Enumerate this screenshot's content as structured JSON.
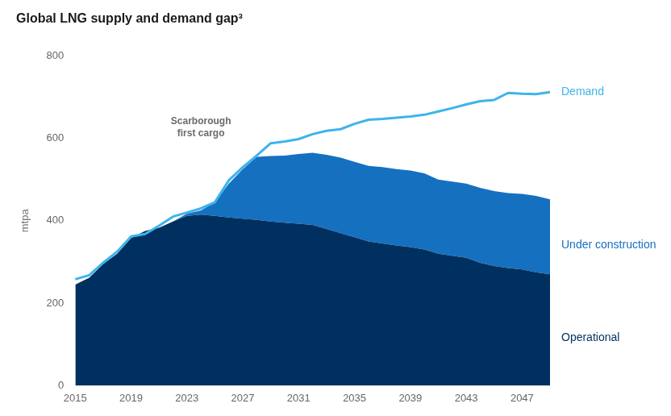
{
  "chart_data": {
    "type": "line",
    "title": "Global LNG supply and demand gap³",
    "y_label": "mtpa",
    "annotation": "Scarborough first cargo",
    "categories": [
      "2015",
      null,
      null,
      null,
      "2019",
      null,
      null,
      null,
      "2023",
      null,
      null,
      null,
      "2027",
      null,
      null,
      null,
      "2031",
      null,
      null,
      null,
      "2035",
      null,
      null,
      null,
      "2039",
      null,
      null,
      null,
      "2043",
      null,
      null,
      null,
      "2047",
      null,
      null
    ],
    "series": [
      {
        "name": "Demand",
        "type": "line",
        "color": "#3db4ec",
        "values": [
          258,
          268,
          298,
          325,
          362,
          368,
          388,
          410,
          420,
          430,
          445,
          498,
          530,
          558,
          588,
          592,
          598,
          610,
          618,
          622,
          635,
          645,
          647,
          650,
          653,
          657,
          665,
          673,
          682,
          690,
          693,
          710,
          708,
          707,
          712
        ]
      },
      {
        "name": "Operational",
        "type": "area",
        "color": "#00305f",
        "values": [
          245,
          262,
          295,
          320,
          358,
          375,
          383,
          398,
          412,
          415,
          412,
          408,
          405,
          402,
          398,
          395,
          393,
          390,
          380,
          370,
          360,
          350,
          345,
          340,
          336,
          330,
          320,
          315,
          310,
          298,
          290,
          285,
          282,
          275,
          270
        ]
      },
      {
        "name": "Under construction",
        "type": "area",
        "color": "#1670c0",
        "values": [
          0,
          0,
          0,
          0,
          0,
          0,
          0,
          0,
          5,
          10,
          33,
          82,
          120,
          153,
          159,
          163,
          169,
          175,
          180,
          183,
          183,
          183,
          185,
          185,
          186,
          185,
          180,
          180,
          180,
          182,
          182,
          182,
          183,
          185,
          182
        ]
      }
    ],
    "stacked": true,
    "ylim": [
      0,
      800
    ],
    "yticks": [
      0,
      200,
      400,
      600,
      800
    ],
    "grid": false
  }
}
